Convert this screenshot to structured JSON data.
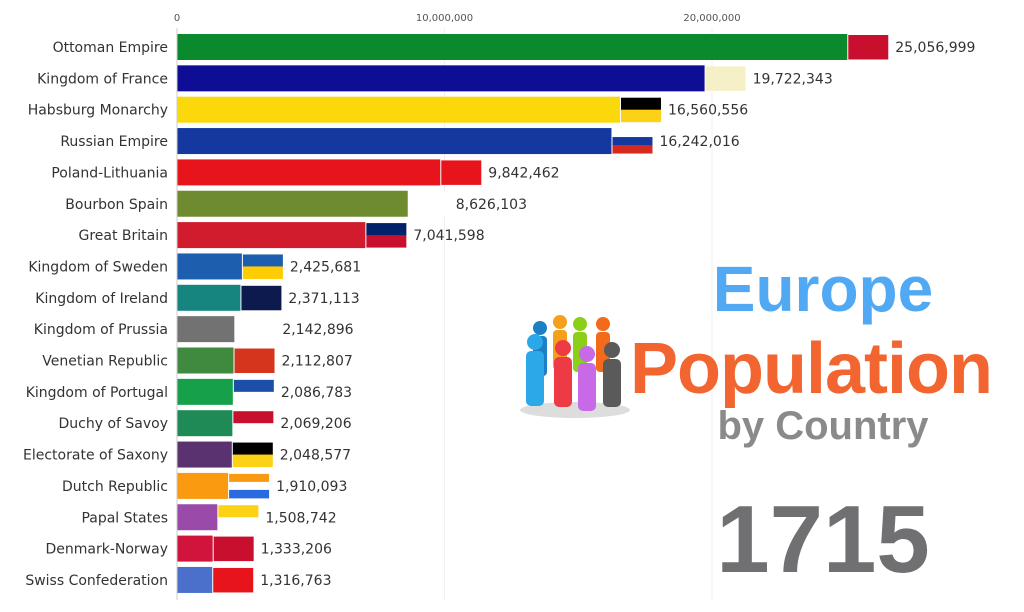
{
  "chart_data": {
    "type": "bar",
    "orientation": "horizontal",
    "title": "Europe Population by Country",
    "title_parts": {
      "line1": "Europe",
      "line2": "Population",
      "line3": "by Country"
    },
    "year": "1715",
    "xlim": [
      0,
      27000000
    ],
    "x_ticks": [
      0,
      10000000,
      20000000
    ],
    "x_tick_labels": [
      "0",
      "10,000,000",
      "20,000,000"
    ],
    "grid": true,
    "categories": [
      "Ottoman Empire",
      "Kingdom of France",
      "Habsburg Monarchy",
      "Russian Empire",
      "Poland-Lithuania",
      "Bourbon Spain",
      "Great Britain",
      "Kingdom of Sweden",
      "Kingdom of Ireland",
      "Kingdom of Prussia",
      "Venetian Republic",
      "Kingdom of Portugal",
      "Duchy of Savoy",
      "Electorate of Saxony",
      "Dutch Republic",
      "Papal States",
      "Denmark-Norway",
      "Swiss Confederation"
    ],
    "values": [
      25056999,
      19722343,
      16560556,
      16242016,
      9842462,
      8626103,
      7041598,
      2425681,
      2371113,
      2142896,
      2112807,
      2086783,
      2069206,
      2048577,
      1910093,
      1508742,
      1333206,
      1316763
    ],
    "value_labels": [
      "25,056,999",
      "19,722,343",
      "16,560,556",
      "16,242,016",
      "9,842,462",
      "8,626,103",
      "7,041,598",
      "2,425,681",
      "2,371,113",
      "2,142,896",
      "2,112,807",
      "2,086,783",
      "2,069,206",
      "2,048,577",
      "1,910,093",
      "1,508,742",
      "1,333,206",
      "1,316,763"
    ],
    "bar_colors": [
      "#0a8a2c",
      "#0d0d96",
      "#fbd80c",
      "#1438a0",
      "#e8141c",
      "#6f8b30",
      "#d01c2c",
      "#1d5fae",
      "#17857f",
      "#727272",
      "#3f8a3e",
      "#16a04a",
      "#1e8a55",
      "#5a3270",
      "#fa9a10",
      "#9a4aa8",
      "#d0143c",
      "#4a70cc"
    ],
    "flag_colors": [
      [
        "#c8102e",
        "#c8102e"
      ],
      [
        "#f5f0c8",
        "#f5f0c8"
      ],
      [
        "#000000",
        "#fcd116"
      ],
      [
        "#ffffff",
        "#1438a0",
        "#d52b1e"
      ],
      [
        "#e8141c",
        "#e8141c"
      ],
      [
        "#ffffff",
        "#ffffff"
      ],
      [
        "#012169",
        "#c8102e"
      ],
      [
        "#1d5fae",
        "#fecc00"
      ],
      [
        "#0c1a4e",
        "#0c1a4e"
      ],
      [
        "#ffffff",
        "#ffffff"
      ],
      [
        "#d4351c",
        "#d4351c"
      ],
      [
        "#1d4ea8",
        "#ffffff"
      ],
      [
        "#c8102e",
        "#ffffff"
      ],
      [
        "#000000",
        "#fcd116"
      ],
      [
        "#fa9a10",
        "#ffffff",
        "#2a6ae0"
      ],
      [
        "#fcd116",
        "#ffffff"
      ],
      [
        "#c8102e",
        "#c8102e"
      ],
      [
        "#e8141c",
        "#e8141c"
      ]
    ]
  }
}
